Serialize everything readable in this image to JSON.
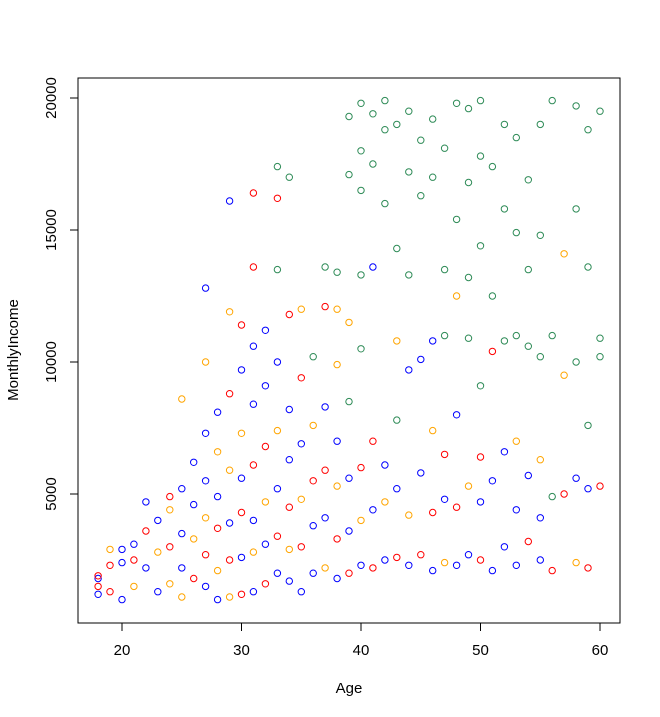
{
  "chart_data": {
    "type": "scatter",
    "title": "",
    "xlabel": "Age",
    "ylabel": "MonthlyIncome",
    "xlim": [
      16.2,
      61.7
    ],
    "ylim": [
      0,
      20500
    ],
    "xticks": [
      20,
      30,
      40,
      50,
      60
    ],
    "yticks": [
      5000,
      10000,
      15000,
      20000
    ],
    "xtick_labels": [
      "20",
      "30",
      "40",
      "50",
      "60"
    ],
    "ytick_labels": [
      "5000",
      "10000",
      "15000",
      "20000"
    ],
    "grid": false,
    "legend": "none",
    "series_colors": [
      "#0000FF",
      "#FF0000",
      "#FFA500",
      "#2E8B57"
    ],
    "note": "points are [age, monthly_income, color_index]; representative sample",
    "points": [
      [
        18,
        1200,
        0
      ],
      [
        18,
        1500,
        1
      ],
      [
        18,
        1800,
        0
      ],
      [
        18,
        1900,
        1
      ],
      [
        19,
        1300,
        1
      ],
      [
        19,
        2300,
        1
      ],
      [
        19,
        2900,
        2
      ],
      [
        20,
        1000,
        0
      ],
      [
        20,
        2400,
        0
      ],
      [
        20,
        2900,
        0
      ],
      [
        21,
        1500,
        2
      ],
      [
        21,
        2500,
        1
      ],
      [
        21,
        3100,
        0
      ],
      [
        22,
        2200,
        0
      ],
      [
        22,
        3600,
        1
      ],
      [
        22,
        4700,
        0
      ],
      [
        23,
        1300,
        0
      ],
      [
        23,
        2800,
        2
      ],
      [
        23,
        4000,
        0
      ],
      [
        24,
        1600,
        2
      ],
      [
        24,
        3000,
        1
      ],
      [
        24,
        4400,
        2
      ],
      [
        24,
        4900,
        1
      ],
      [
        25,
        1100,
        2
      ],
      [
        25,
        2200,
        0
      ],
      [
        25,
        3500,
        0
      ],
      [
        25,
        5200,
        0
      ],
      [
        25,
        8600,
        2
      ],
      [
        26,
        1800,
        1
      ],
      [
        26,
        3300,
        2
      ],
      [
        26,
        4600,
        0
      ],
      [
        26,
        6200,
        0
      ],
      [
        27,
        1500,
        0
      ],
      [
        27,
        2700,
        1
      ],
      [
        27,
        4100,
        2
      ],
      [
        27,
        5500,
        0
      ],
      [
        27,
        7300,
        0
      ],
      [
        27,
        10000,
        2
      ],
      [
        27,
        12800,
        0
      ],
      [
        28,
        1000,
        0
      ],
      [
        28,
        2100,
        2
      ],
      [
        28,
        3700,
        1
      ],
      [
        28,
        4900,
        0
      ],
      [
        28,
        6600,
        2
      ],
      [
        28,
        8100,
        0
      ],
      [
        29,
        1100,
        2
      ],
      [
        29,
        2500,
        1
      ],
      [
        29,
        3900,
        0
      ],
      [
        29,
        5900,
        2
      ],
      [
        29,
        8800,
        1
      ],
      [
        29,
        11900,
        2
      ],
      [
        29,
        16100,
        0
      ],
      [
        30,
        1200,
        1
      ],
      [
        30,
        2600,
        0
      ],
      [
        30,
        4300,
        1
      ],
      [
        30,
        5600,
        0
      ],
      [
        30,
        7300,
        2
      ],
      [
        30,
        9700,
        0
      ],
      [
        30,
        11400,
        1
      ],
      [
        31,
        1300,
        0
      ],
      [
        31,
        2800,
        2
      ],
      [
        31,
        4000,
        0
      ],
      [
        31,
        6100,
        1
      ],
      [
        31,
        8400,
        0
      ],
      [
        31,
        10600,
        0
      ],
      [
        31,
        13600,
        1
      ],
      [
        31,
        16400,
        1
      ],
      [
        32,
        1600,
        1
      ],
      [
        32,
        3100,
        0
      ],
      [
        32,
        4700,
        2
      ],
      [
        32,
        6800,
        1
      ],
      [
        32,
        9100,
        0
      ],
      [
        32,
        11200,
        0
      ],
      [
        33,
        2000,
        0
      ],
      [
        33,
        3400,
        1
      ],
      [
        33,
        5200,
        0
      ],
      [
        33,
        7400,
        2
      ],
      [
        33,
        10000,
        0
      ],
      [
        33,
        13500,
        3
      ],
      [
        33,
        16200,
        1
      ],
      [
        33,
        17400,
        3
      ],
      [
        34,
        1700,
        0
      ],
      [
        34,
        2900,
        2
      ],
      [
        34,
        4500,
        1
      ],
      [
        34,
        6300,
        0
      ],
      [
        34,
        8200,
        0
      ],
      [
        34,
        11800,
        1
      ],
      [
        34,
        17000,
        3
      ],
      [
        35,
        1300,
        0
      ],
      [
        35,
        3000,
        1
      ],
      [
        35,
        4800,
        2
      ],
      [
        35,
        6900,
        0
      ],
      [
        35,
        9400,
        1
      ],
      [
        35,
        12000,
        2
      ],
      [
        36,
        2000,
        0
      ],
      [
        36,
        3800,
        0
      ],
      [
        36,
        5500,
        1
      ],
      [
        36,
        7600,
        2
      ],
      [
        36,
        10200,
        3
      ],
      [
        37,
        2200,
        2
      ],
      [
        37,
        4100,
        0
      ],
      [
        37,
        5900,
        1
      ],
      [
        37,
        8300,
        0
      ],
      [
        37,
        12100,
        1
      ],
      [
        37,
        13600,
        3
      ],
      [
        38,
        1800,
        0
      ],
      [
        38,
        3300,
        1
      ],
      [
        38,
        5300,
        2
      ],
      [
        38,
        7000,
        0
      ],
      [
        38,
        9900,
        2
      ],
      [
        38,
        12000,
        2
      ],
      [
        38,
        13400,
        3
      ],
      [
        39,
        2000,
        1
      ],
      [
        39,
        3600,
        0
      ],
      [
        39,
        5600,
        0
      ],
      [
        39,
        8500,
        3
      ],
      [
        39,
        11500,
        2
      ],
      [
        39,
        17100,
        3
      ],
      [
        39,
        19300,
        3
      ],
      [
        40,
        2300,
        0
      ],
      [
        40,
        4000,
        2
      ],
      [
        40,
        6000,
        1
      ],
      [
        40,
        10500,
        3
      ],
      [
        40,
        13300,
        3
      ],
      [
        40,
        16500,
        3
      ],
      [
        40,
        18000,
        3
      ],
      [
        40,
        19800,
        3
      ],
      [
        41,
        2200,
        1
      ],
      [
        41,
        4400,
        0
      ],
      [
        41,
        7000,
        1
      ],
      [
        41,
        13600,
        0
      ],
      [
        41,
        17500,
        3
      ],
      [
        41,
        19400,
        3
      ],
      [
        42,
        2500,
        0
      ],
      [
        42,
        4700,
        2
      ],
      [
        42,
        6100,
        0
      ],
      [
        42,
        16000,
        3
      ],
      [
        42,
        18800,
        3
      ],
      [
        42,
        19900,
        3
      ],
      [
        43,
        2600,
        1
      ],
      [
        43,
        5200,
        0
      ],
      [
        43,
        7800,
        3
      ],
      [
        43,
        10800,
        2
      ],
      [
        43,
        14300,
        3
      ],
      [
        43,
        19000,
        3
      ],
      [
        44,
        2300,
        0
      ],
      [
        44,
        4200,
        2
      ],
      [
        44,
        9700,
        0
      ],
      [
        44,
        13300,
        3
      ],
      [
        44,
        17200,
        3
      ],
      [
        44,
        19500,
        3
      ],
      [
        45,
        2700,
        1
      ],
      [
        45,
        5800,
        0
      ],
      [
        45,
        10100,
        0
      ],
      [
        45,
        16300,
        3
      ],
      [
        45,
        18400,
        3
      ],
      [
        46,
        2100,
        0
      ],
      [
        46,
        4300,
        1
      ],
      [
        46,
        7400,
        2
      ],
      [
        46,
        10800,
        0
      ],
      [
        46,
        17000,
        3
      ],
      [
        46,
        19200,
        3
      ],
      [
        47,
        2400,
        2
      ],
      [
        47,
        4800,
        0
      ],
      [
        47,
        6500,
        1
      ],
      [
        47,
        11000,
        3
      ],
      [
        47,
        13500,
        3
      ],
      [
        47,
        18100,
        3
      ],
      [
        48,
        2300,
        0
      ],
      [
        48,
        4500,
        1
      ],
      [
        48,
        8000,
        0
      ],
      [
        48,
        12500,
        2
      ],
      [
        48,
        15400,
        3
      ],
      [
        48,
        19800,
        3
      ],
      [
        49,
        2700,
        0
      ],
      [
        49,
        5300,
        2
      ],
      [
        49,
        10900,
        3
      ],
      [
        49,
        13200,
        3
      ],
      [
        49,
        16800,
        3
      ],
      [
        49,
        19600,
        3
      ],
      [
        50,
        2500,
        1
      ],
      [
        50,
        4700,
        0
      ],
      [
        50,
        6400,
        1
      ],
      [
        50,
        9100,
        3
      ],
      [
        50,
        14400,
        3
      ],
      [
        50,
        17800,
        3
      ],
      [
        50,
        19900,
        3
      ],
      [
        51,
        2100,
        0
      ],
      [
        51,
        5500,
        0
      ],
      [
        51,
        10400,
        1
      ],
      [
        51,
        12500,
        3
      ],
      [
        51,
        17400,
        3
      ],
      [
        52,
        3000,
        0
      ],
      [
        52,
        6600,
        0
      ],
      [
        52,
        10800,
        3
      ],
      [
        52,
        15800,
        3
      ],
      [
        52,
        19000,
        3
      ],
      [
        53,
        2300,
        0
      ],
      [
        53,
        4400,
        0
      ],
      [
        53,
        7000,
        2
      ],
      [
        53,
        11000,
        3
      ],
      [
        53,
        14900,
        3
      ],
      [
        53,
        18500,
        3
      ],
      [
        54,
        3200,
        1
      ],
      [
        54,
        5700,
        0
      ],
      [
        54,
        10600,
        3
      ],
      [
        54,
        13500,
        3
      ],
      [
        54,
        16900,
        3
      ],
      [
        55,
        2500,
        0
      ],
      [
        55,
        4100,
        0
      ],
      [
        55,
        6300,
        2
      ],
      [
        55,
        10200,
        3
      ],
      [
        55,
        14800,
        3
      ],
      [
        55,
        19000,
        3
      ],
      [
        56,
        2100,
        1
      ],
      [
        56,
        4900,
        3
      ],
      [
        56,
        11000,
        3
      ],
      [
        56,
        19900,
        3
      ],
      [
        57,
        5000,
        1
      ],
      [
        57,
        9500,
        2
      ],
      [
        57,
        14100,
        2
      ],
      [
        58,
        2400,
        2
      ],
      [
        58,
        5600,
        0
      ],
      [
        58,
        10000,
        3
      ],
      [
        58,
        15800,
        3
      ],
      [
        58,
        19700,
        3
      ],
      [
        59,
        2200,
        1
      ],
      [
        59,
        5200,
        0
      ],
      [
        59,
        7600,
        3
      ],
      [
        59,
        13600,
        3
      ],
      [
        59,
        18800,
        3
      ],
      [
        60,
        5300,
        1
      ],
      [
        60,
        10200,
        3
      ],
      [
        60,
        10900,
        3
      ],
      [
        60,
        19500,
        3
      ]
    ]
  }
}
